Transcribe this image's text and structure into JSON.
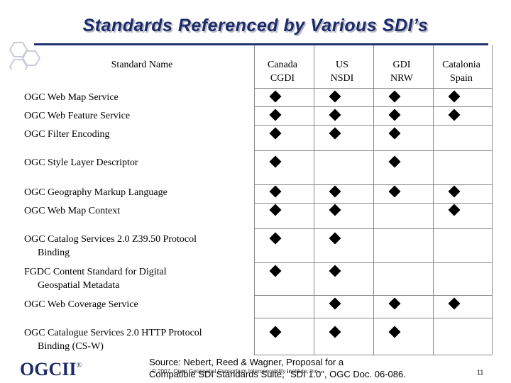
{
  "title": "Standards Referenced by Various SDI’s",
  "table": {
    "name_header": "Standard Name",
    "columns": [
      {
        "line1": "Canada",
        "line2": "CGDI"
      },
      {
        "line1": "US",
        "line2": "NSDI"
      },
      {
        "line1": "GDI",
        "line2": "NRW"
      },
      {
        "line1": "Catalonia",
        "line2": "Spain"
      }
    ],
    "rows": [
      {
        "name": "OGC Web Map Service",
        "cont": "",
        "marks": [
          true,
          true,
          true,
          true
        ]
      },
      {
        "name": "OGC Web Feature Service",
        "cont": "",
        "marks": [
          true,
          true,
          true,
          true
        ]
      },
      {
        "name": "OGC Filter Encoding",
        "cont": "",
        "marks": [
          true,
          true,
          true,
          false
        ]
      },
      {
        "name": "OGC Style Layer Descriptor",
        "cont": "",
        "marks": [
          true,
          false,
          true,
          false
        ]
      },
      {
        "name": "OGC Geography Markup Language",
        "cont": "",
        "marks": [
          true,
          true,
          true,
          true
        ]
      },
      {
        "name": "OGC Web Map Context",
        "cont": "",
        "marks": [
          true,
          true,
          false,
          true
        ]
      },
      {
        "name": "OGC Catalog Services 2.0 Z39.50 Protocol",
        "cont": "Binding",
        "marks": [
          true,
          true,
          false,
          false
        ]
      },
      {
        "name": "FGDC Content Standard for Digital",
        "cont": "Geospatial Metadata",
        "marks": [
          true,
          true,
          false,
          false
        ]
      },
      {
        "name": "OGC Web Coverage Service",
        "cont": "",
        "marks": [
          false,
          true,
          true,
          true
        ]
      },
      {
        "name": "OGC Catalogue Services 2.0 HTTP Protocol",
        "cont": "Binding (CS-W)",
        "marks": [
          true,
          true,
          true,
          false
        ]
      }
    ]
  },
  "footer": {
    "logo": "OGCII",
    "logo_mark": "®",
    "source_line1": "Source: Nebert, Reed & Wagner, Proposal for a",
    "source_line2": "Compatible SDI Standards Suite, \"SDI 1.0\", OGC Doc. 06-086.",
    "copyright": "© 2007, Open Geospatial Consortium Interoperability Institute, Inc.",
    "page_number": "11"
  },
  "colors": {
    "title": "#1d2a6b",
    "rule": "#20346f",
    "grid": "#888888"
  }
}
